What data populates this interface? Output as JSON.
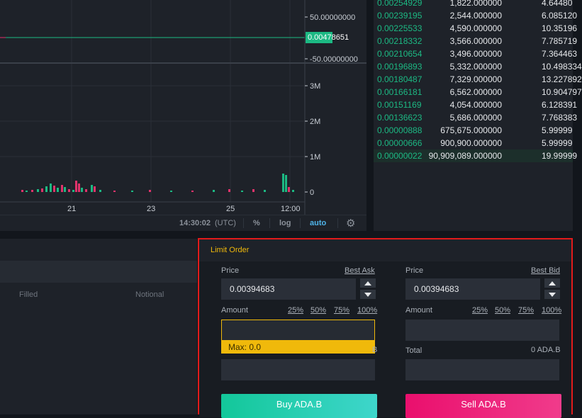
{
  "chart": {
    "y_upper_labels": [
      "50.00000000",
      "-50.00000000"
    ],
    "current_price": "0.00478651",
    "volume_labels": [
      "3M",
      "2M",
      "1M",
      "0"
    ],
    "x_labels": [
      "21",
      "23",
      "25",
      "12:00"
    ],
    "footer": {
      "time": "14:30:02",
      "timezone": "(UTC)",
      "percent": "%",
      "log": "log",
      "auto": "auto",
      "settings_icon": "gear-icon"
    },
    "colors": {
      "up": "#1cb983",
      "down": "#e0336b"
    }
  },
  "orderbook": {
    "rows": [
      {
        "price": "0.00254929",
        "amount": "1,822.000000",
        "total": "4.64480"
      },
      {
        "price": "0.00239195",
        "amount": "2,544.000000",
        "total": "6.085120"
      },
      {
        "price": "0.00225533",
        "amount": "4,590.000000",
        "total": "10.35196"
      },
      {
        "price": "0.00218332",
        "amount": "3,566.000000",
        "total": "7.785719"
      },
      {
        "price": "0.00210654",
        "amount": "3,496.000000",
        "total": "7.364463"
      },
      {
        "price": "0.00196893",
        "amount": "5,332.000000",
        "total": "10.498334"
      },
      {
        "price": "0.00180487",
        "amount": "7,329.000000",
        "total": "13.227892"
      },
      {
        "price": "0.00166181",
        "amount": "6,562.000000",
        "total": "10.904797"
      },
      {
        "price": "0.00151169",
        "amount": "4,054.000000",
        "total": "6.128391"
      },
      {
        "price": "0.00136623",
        "amount": "5,686.000000",
        "total": "7.768383"
      },
      {
        "price": "0.00000888",
        "amount": "675,675.000000",
        "total": "5.99999"
      },
      {
        "price": "0.00000666",
        "amount": "900,900.000000",
        "total": "5.99999"
      },
      {
        "price": "0.00000022",
        "amount": "90,909,089.000000",
        "total": "19.99999"
      }
    ]
  },
  "orders": {
    "columns": [
      "Filled",
      "Notional"
    ]
  },
  "limit_order": {
    "title": "Limit Order",
    "buy": {
      "price_label": "Price",
      "best_link": "Best Ask",
      "price_value": "0.00394683",
      "amount_label": "Amount",
      "pcts": [
        "25%",
        "50%",
        "75%",
        "100%"
      ],
      "amount_value": "",
      "max_hint": "Max: 0.0",
      "total_tail": "B",
      "button": "Buy ADA.B"
    },
    "sell": {
      "price_label": "Price",
      "best_link": "Best Bid",
      "price_value": "0.00394683",
      "amount_label": "Amount",
      "pcts": [
        "25%",
        "50%",
        "75%",
        "100%"
      ],
      "amount_value": "",
      "total_label": "Total",
      "total_value": "0 ADA.B",
      "button": "Sell ADA.B"
    }
  }
}
